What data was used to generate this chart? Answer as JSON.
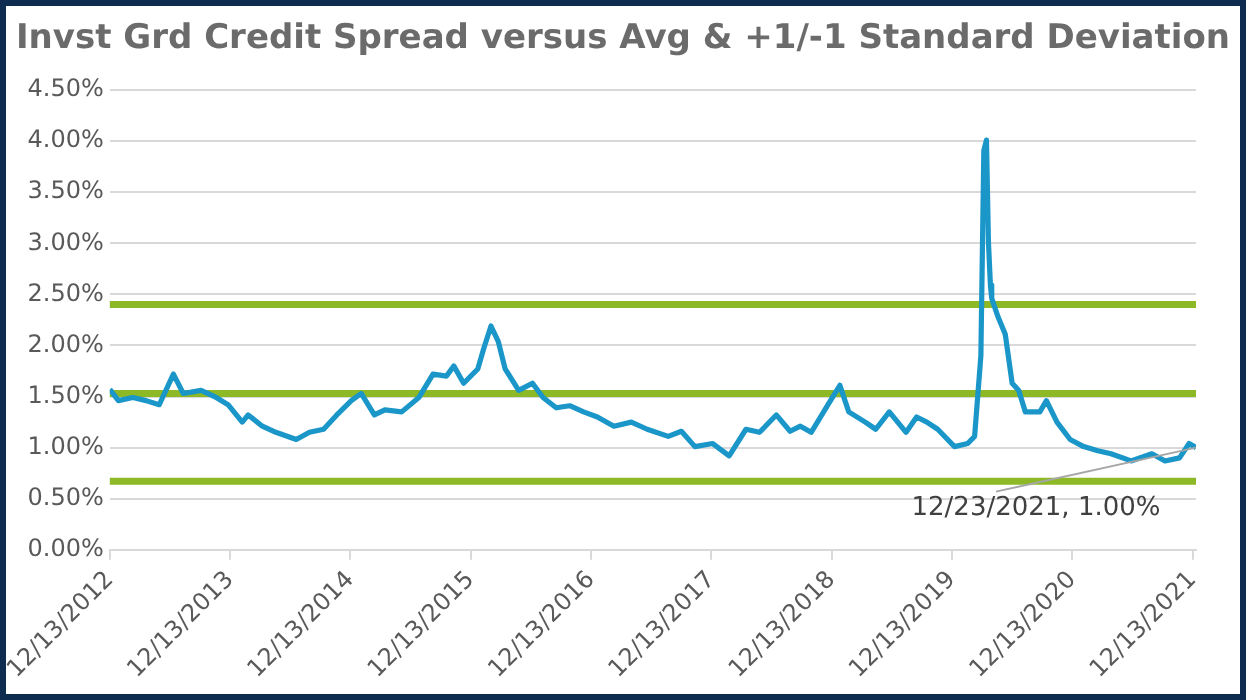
{
  "chart_data": {
    "type": "line",
    "title": "Invst Grd Credit Spread versus Avg & +1/-1 Standard Deviation",
    "x": [
      "2012-12-13",
      "2013-01-08",
      "2013-02-21",
      "2013-04-02",
      "2013-05-12",
      "2013-06-24",
      "2013-07-24",
      "2013-09-16",
      "2013-10-27",
      "2013-12-07",
      "2014-01-19",
      "2014-02-06",
      "2014-03-21",
      "2014-05-01",
      "2014-07-02",
      "2014-08-11",
      "2014-09-23",
      "2014-11-02",
      "2014-12-16",
      "2015-01-15",
      "2015-02-24",
      "2015-03-28",
      "2015-05-18",
      "2015-07-09",
      "2015-08-21",
      "2015-10-01",
      "2015-10-23",
      "2015-11-22",
      "2016-01-04",
      "2016-01-22",
      "2016-02-13",
      "2016-03-06",
      "2016-03-27",
      "2016-05-07",
      "2016-06-18",
      "2016-07-20",
      "2016-08-29",
      "2016-10-09",
      "2016-11-20",
      "2017-01-01",
      "2017-02-20",
      "2017-04-14",
      "2017-06-01",
      "2017-08-04",
      "2017-09-13",
      "2017-10-24",
      "2017-12-17",
      "2018-02-05",
      "2018-03-28",
      "2018-05-08",
      "2018-06-28",
      "2018-08-09",
      "2018-09-09",
      "2018-10-12",
      "2018-12-02",
      "2019-01-07",
      "2019-02-03",
      "2019-03-25",
      "2019-04-26",
      "2019-06-06",
      "2019-07-27",
      "2019-08-28",
      "2019-09-28",
      "2019-10-31",
      "2019-12-21",
      "2020-01-30",
      "2020-02-20",
      "2020-03-10",
      "2020-03-19",
      "2020-03-27",
      "2020-04-02",
      "2020-04-08",
      "2020-04-12",
      "2020-05-01",
      "2020-05-23",
      "2020-06-13",
      "2020-07-03",
      "2020-07-23",
      "2020-09-05",
      "2020-09-25",
      "2020-10-27",
      "2020-12-06",
      "2021-01-16",
      "2021-02-28",
      "2021-04-09",
      "2021-06-09",
      "2021-08-11",
      "2021-09-20",
      "2021-11-03",
      "2021-12-02",
      "2021-12-23"
    ],
    "series": [
      {
        "color": "#1a96c8",
        "values": [
          1.57,
          1.46,
          1.49,
          1.46,
          1.42,
          1.72,
          1.53,
          1.56,
          1.5,
          1.42,
          1.25,
          1.32,
          1.21,
          1.15,
          1.08,
          1.15,
          1.18,
          1.32,
          1.46,
          1.53,
          1.32,
          1.37,
          1.35,
          1.49,
          1.72,
          1.7,
          1.8,
          1.63,
          1.77,
          1.97,
          2.19,
          2.04,
          1.77,
          1.56,
          1.63,
          1.49,
          1.39,
          1.41,
          1.35,
          1.3,
          1.21,
          1.25,
          1.18,
          1.11,
          1.16,
          1.01,
          1.04,
          0.92,
          1.18,
          1.15,
          1.32,
          1.16,
          1.21,
          1.15,
          1.42,
          1.61,
          1.35,
          1.25,
          1.18,
          1.35,
          1.15,
          1.3,
          1.25,
          1.18,
          1.01,
          1.04,
          1.11,
          1.9,
          3.91,
          4.01,
          3.01,
          2.59,
          2.46,
          2.28,
          2.11,
          1.63,
          1.56,
          1.35,
          1.35,
          1.46,
          1.25,
          1.08,
          1.01,
          0.97,
          0.94,
          0.87,
          0.94,
          0.87,
          0.9,
          1.04,
          1.0
        ]
      }
    ],
    "xlim": [
      "2012-12-13",
      "2021-12-23"
    ],
    "xticks": [
      {
        "value": "2012-12-13",
        "label": "12/13/2012"
      },
      {
        "value": "2013-12-13",
        "label": "12/13/2013"
      },
      {
        "value": "2014-12-13",
        "label": "12/13/2014"
      },
      {
        "value": "2015-12-13",
        "label": "12/13/2015"
      },
      {
        "value": "2016-12-13",
        "label": "12/13/2016"
      },
      {
        "value": "2017-12-13",
        "label": "12/13/2017"
      },
      {
        "value": "2018-12-13",
        "label": "12/13/2018"
      },
      {
        "value": "2019-12-13",
        "label": "12/13/2019"
      },
      {
        "value": "2020-12-13",
        "label": "12/13/2020"
      },
      {
        "value": "2021-12-13",
        "label": "12/13/2021"
      }
    ],
    "ylim": [
      0,
      4.5
    ],
    "yticks": [
      {
        "value": 0,
        "label": "0.00%"
      },
      {
        "value": 0.5,
        "label": "0.50%"
      },
      {
        "value": 1,
        "label": "1.00%"
      },
      {
        "value": 1.5,
        "label": "1.50%"
      },
      {
        "value": 2,
        "label": "2.00%"
      },
      {
        "value": 2.5,
        "label": "2.50%"
      },
      {
        "value": 3,
        "label": "3.00%"
      },
      {
        "value": 3.5,
        "label": "3.50%"
      },
      {
        "value": 4,
        "label": "4.00%"
      },
      {
        "value": 4.5,
        "label": "4.50%"
      }
    ],
    "ref_lines": [
      {
        "axis": "y",
        "value": 2.4,
        "color": "#8cb925"
      },
      {
        "axis": "y",
        "value": 1.53,
        "color": "#8cb925"
      },
      {
        "axis": "y",
        "value": 0.67,
        "color": "#8cb925"
      }
    ],
    "annotations": [
      {
        "text": "12/23/2021, 1.00%",
        "x": "2021-12-23",
        "y": 1.0
      }
    ],
    "grid": "y",
    "legend": false,
    "marker": "none",
    "line_style": "solid"
  }
}
